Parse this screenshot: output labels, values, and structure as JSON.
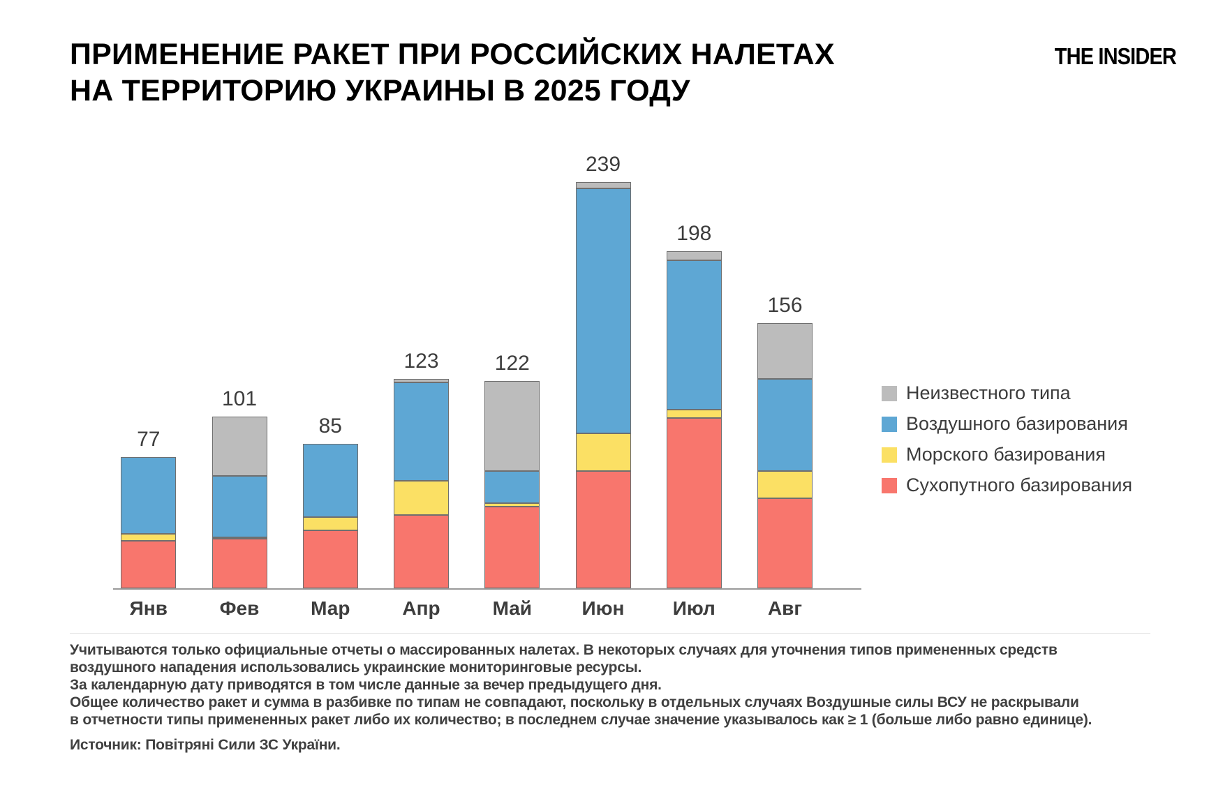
{
  "title": {
    "line1": "ПРИМЕНЕНИЕ РАКЕТ ПРИ РОССИЙСКИХ НАЛЕТАХ",
    "line2": "НА ТЕРРИТОРИЮ УКРАИНЫ В 2025 ГОДУ"
  },
  "logo": "THE INSIDER",
  "chart_data": {
    "type": "bar",
    "stacked": true,
    "grid": false,
    "y_axis_visible": false,
    "value_labels": "totals above bars",
    "legend_position": "right",
    "categories": [
      "Янв",
      "Фев",
      "Мар",
      "Апр",
      "Май",
      "Июн",
      "Июл",
      "Авг"
    ],
    "totals": [
      77,
      101,
      85,
      123,
      122,
      239,
      198,
      156
    ],
    "series": [
      {
        "name": "Сухопутного базирования",
        "color": "#f8766d",
        "values": [
          28,
          29,
          34,
          43,
          48,
          69,
          100,
          53
        ]
      },
      {
        "name": "Морского базирования",
        "color": "#fbe064",
        "values": [
          4,
          1,
          8,
          20,
          2,
          22,
          5,
          16
        ]
      },
      {
        "name": "Воздушного базирования",
        "color": "#5ea7d4",
        "values": [
          45,
          36,
          43,
          58,
          19,
          144,
          88,
          54
        ]
      },
      {
        "name": "Неизвестного типа",
        "color": "#bcbcbc",
        "values": [
          0,
          35,
          0,
          2,
          53,
          4,
          5,
          33
        ]
      }
    ],
    "legend": [
      {
        "label": "Неизвестного типа",
        "color": "#bcbcbc"
      },
      {
        "label": "Воздушного базирования",
        "color": "#5ea7d4"
      },
      {
        "label": "Морского базирования",
        "color": "#fbe064"
      },
      {
        "label": "Сухопутного базирования",
        "color": "#f8766d"
      }
    ]
  },
  "footnotes": [
    "Учитываются только официальные отчеты о массированных налетах. В некоторых случаях для уточнения типов примененных средств",
    "воздушного нападения использовались украинские мониторинговые ресурсы.",
    "За календарную дату приводятся в том числе данные за вечер предыдущего дня.",
    "Общее количество ракет и сумма в разбивке по типам не совпадают, поскольку в отдельных случаях Воздушные силы ВСУ не раскрывали",
    "в отчетности типы примененных ракет либо их количество; в последнем случае значение указывалось как ≥ 1 (больше либо равно единице)."
  ],
  "source": "Источник: Повітряні Сили ЗС України."
}
